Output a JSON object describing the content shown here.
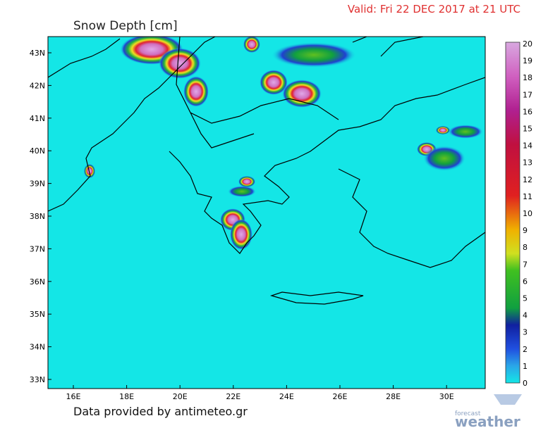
{
  "header": {
    "title": "Snow Depth  [cm]",
    "valid": "Valid: Fri 22 DEC 2017 at 21 UTC"
  },
  "axes": {
    "lat_labels": [
      "43N",
      "42N",
      "41N",
      "40N",
      "39N",
      "38N",
      "37N",
      "36N",
      "35N",
      "34N",
      "33N"
    ],
    "lon_labels": [
      "16E",
      "18E",
      "20E",
      "22E",
      "24E",
      "26E",
      "28E",
      "30E"
    ]
  },
  "colorbar": {
    "labels": [
      20,
      19,
      18,
      17,
      16,
      15,
      14,
      13,
      12,
      11,
      10,
      9,
      8,
      7,
      6,
      5,
      4,
      3,
      2,
      1,
      0
    ]
  },
  "footer": {
    "credit": "Data provided by antimeteo.gr"
  },
  "logo": {
    "small": "forecast",
    "large": "weather"
  }
}
